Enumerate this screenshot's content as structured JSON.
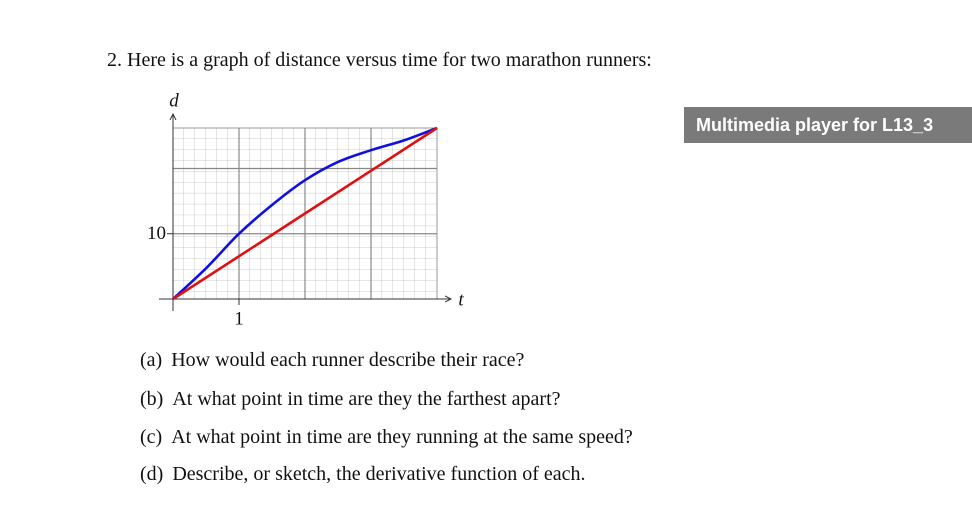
{
  "question": {
    "number": "2.",
    "text": "Here is a graph of distance versus time for two marathon runners:"
  },
  "player": "Multimedia player for L13_3",
  "chart_data": {
    "type": "line",
    "x_label": "t",
    "y_label": "d",
    "xlim": [
      0,
      4
    ],
    "ylim": [
      0,
      26.2
    ],
    "xticks": [
      1
    ],
    "yticks": [
      10
    ],
    "grid": true,
    "series": [
      {
        "color": "#1010e0",
        "x": [
          0,
          0.5,
          1,
          1.5,
          2,
          2.5,
          3,
          3.5,
          4
        ],
        "values": [
          0,
          4.7,
          10,
          14.4,
          18.2,
          21.0,
          22.8,
          24.3,
          26.2
        ]
      },
      {
        "color": "#e01010",
        "x": [
          0,
          4
        ],
        "values": [
          0,
          26.2
        ]
      }
    ]
  },
  "parts": [
    {
      "label": "(a)",
      "text": "How would each runner describe their race?"
    },
    {
      "label": "(b)",
      "text": "At what point in time are they the farthest apart?"
    },
    {
      "label": "(c)",
      "text": "At what point in time are they running at the same speed?"
    },
    {
      "label": "(d)",
      "text": "Describe, or sketch, the derivative function of each."
    }
  ]
}
